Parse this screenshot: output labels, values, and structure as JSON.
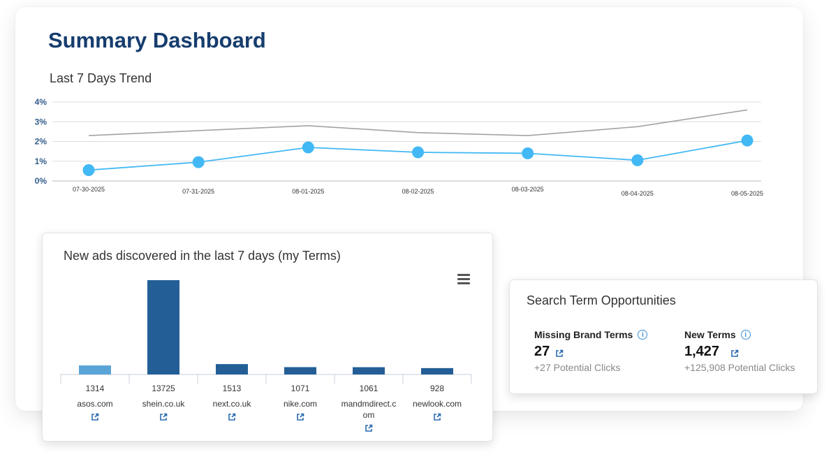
{
  "page": {
    "title": "Summary Dashboard"
  },
  "trend": {
    "title": "Last 7 Days Trend"
  },
  "chart_data": [
    {
      "type": "line",
      "x": [
        "07-30-2025",
        "07-31-2025",
        "08-01-2025",
        "08-02-2025",
        "08-03-2025",
        "08-04-2025",
        "08-05-2025"
      ],
      "y_ticks": [
        "0%",
        "1%",
        "2%",
        "3%",
        "4%"
      ],
      "ylim": [
        0,
        4
      ],
      "grid": true,
      "series": [
        {
          "values": [
            0.55,
            0.95,
            1.7,
            1.45,
            1.4,
            1.05,
            2.05
          ],
          "color": "#42b8f4",
          "markers": true
        },
        {
          "values": [
            2.3,
            2.55,
            2.8,
            2.45,
            2.3,
            2.75,
            3.6
          ],
          "color": "#a3a3a3",
          "markers": false
        }
      ]
    },
    {
      "type": "bar",
      "title": "New ads discovered in the last 7 days (my Terms)",
      "categories": [
        "asos.com",
        "shein.co.uk",
        "next.co.uk",
        "nike.com",
        "mandmdirect.com",
        "newlook.com"
      ],
      "values": [
        1314,
        13725,
        1513,
        1071,
        1061,
        928
      ],
      "bar_colors": [
        "#5ba4d8",
        "#235f96",
        "#235f96",
        "#235f96",
        "#235f96",
        "#235f96"
      ]
    }
  ],
  "ads": {
    "title": "New ads discovered in the last 7 days (my Terms)",
    "menu_icon": "hamburger-menu-icon",
    "sites": [
      {
        "count": "1314",
        "name": "asos.com"
      },
      {
        "count": "13725",
        "name": "shein.co.uk"
      },
      {
        "count": "1513",
        "name": "next.co.uk"
      },
      {
        "count": "1071",
        "name": "nike.com"
      },
      {
        "count": "1061",
        "name": "mandmdirect.com"
      },
      {
        "count": "928",
        "name": "newlook.com"
      }
    ]
  },
  "opportunities": {
    "title": "Search Term Opportunities",
    "missing_brand": {
      "label": "Missing Brand Terms",
      "value": "27",
      "sub": "+27 Potential Clicks"
    },
    "new_terms": {
      "label": "New Terms",
      "value": "1,427",
      "sub": "+125,908 Potential Clicks"
    }
  }
}
